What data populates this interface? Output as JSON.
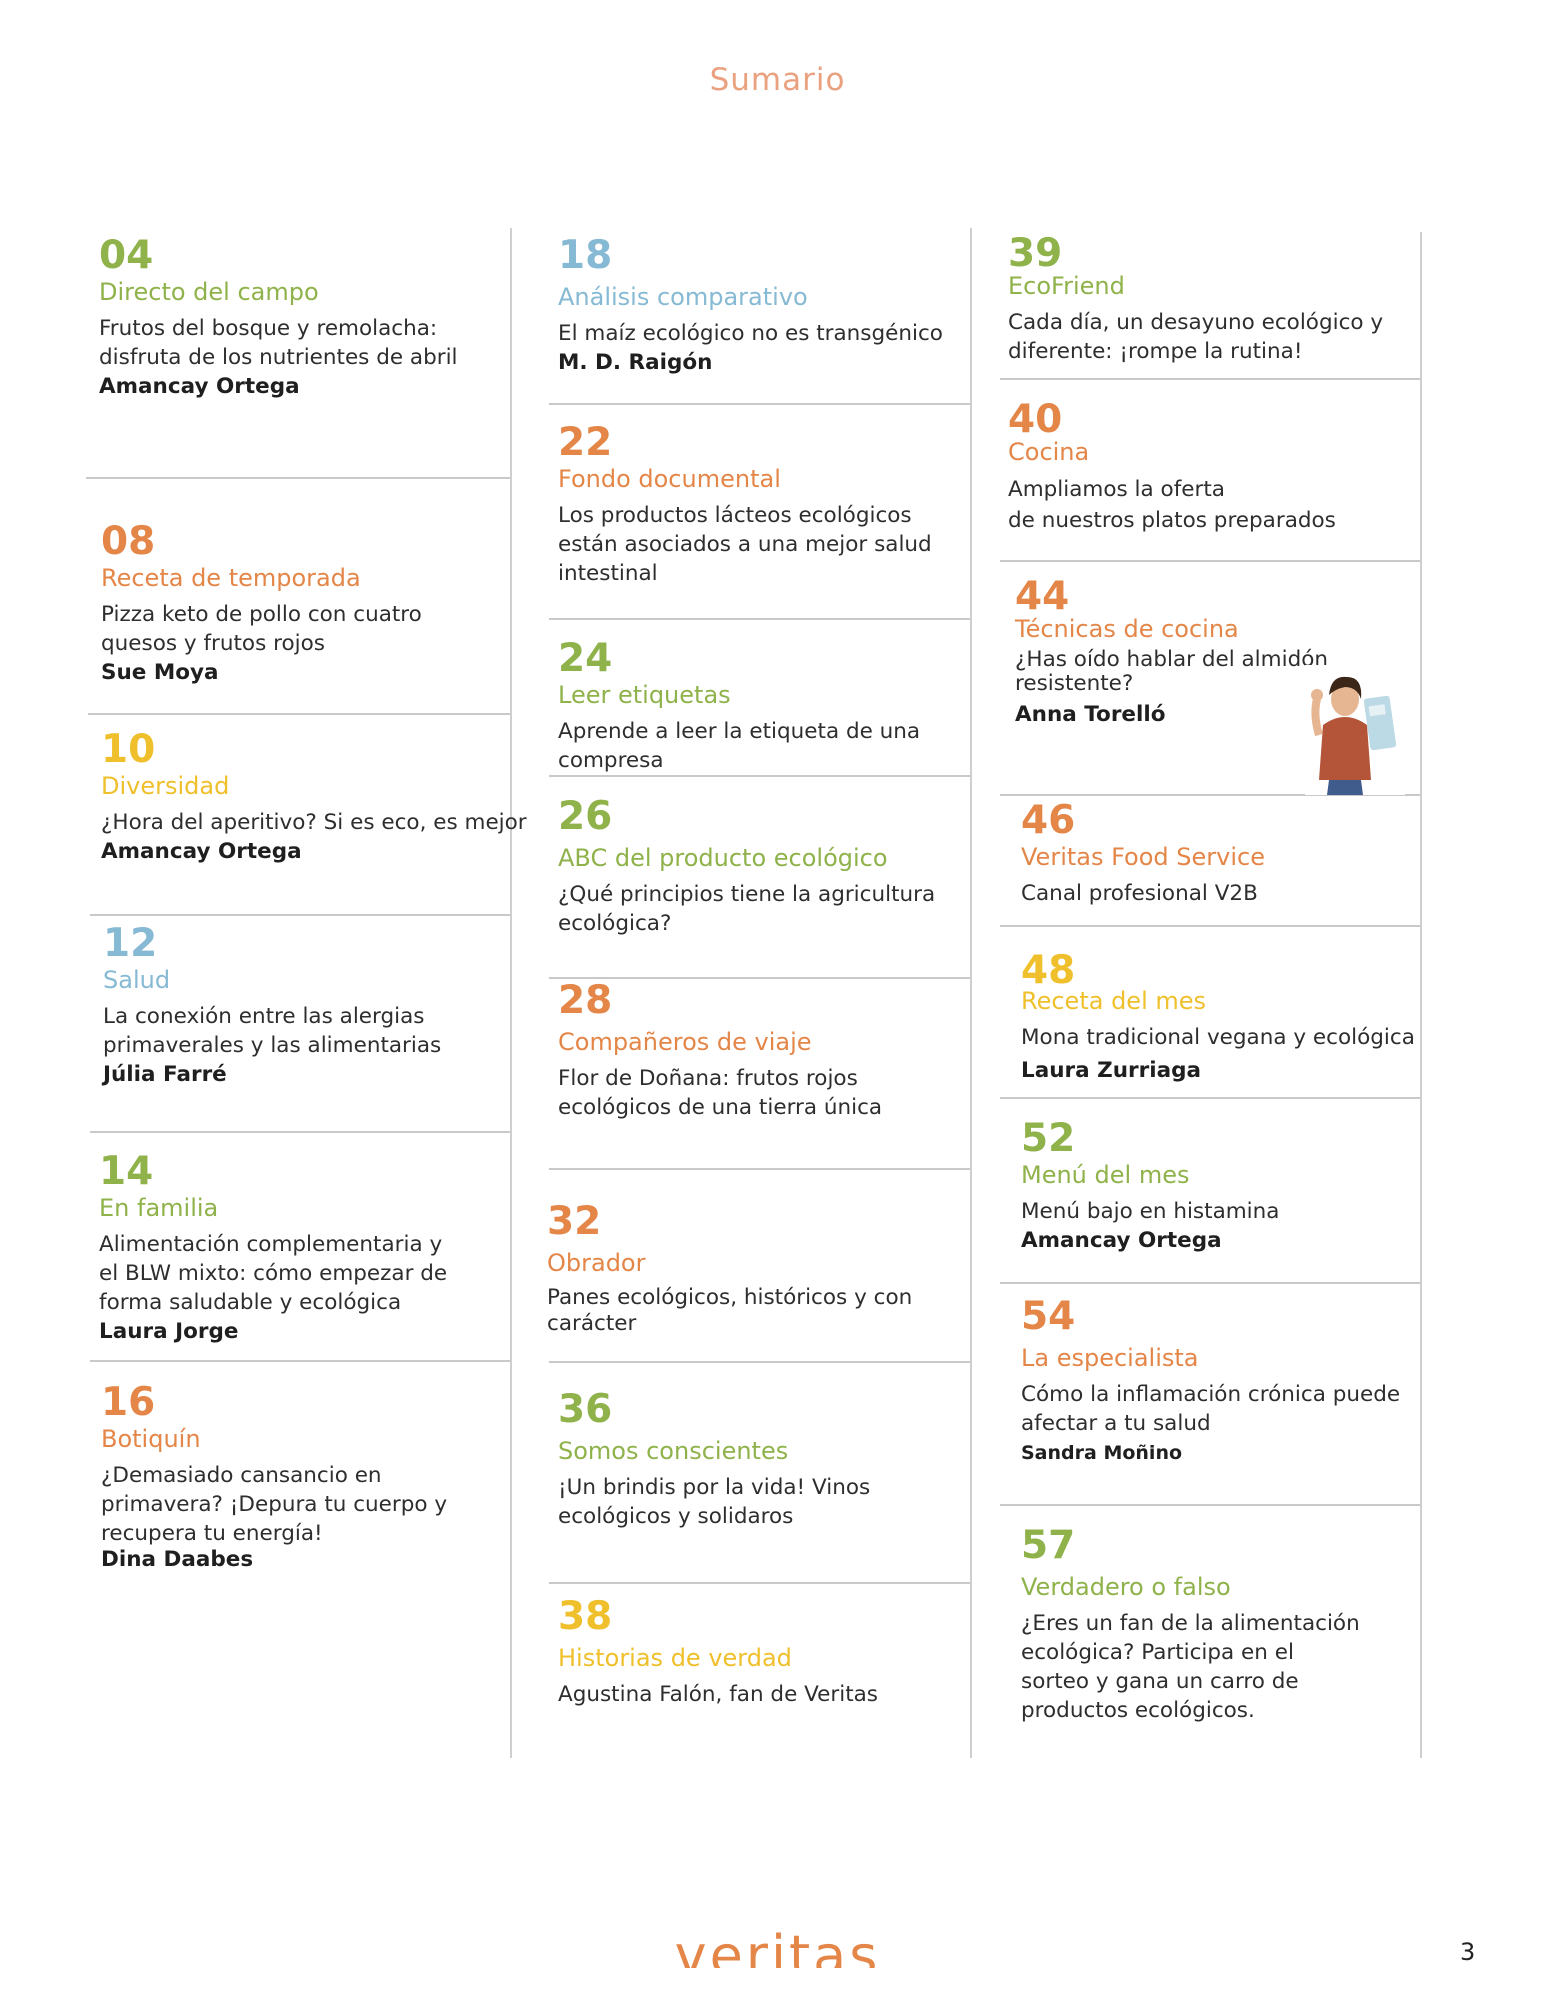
{
  "title": "Sumario",
  "columns": [
    [
      {
        "page": "04",
        "section": "Directo del campo",
        "color": "green",
        "desc": [
          "Frutos del bosque y remolacha:",
          "disfruta de los nutrientes de abril"
        ],
        "author": "Amancay Ortega"
      },
      {
        "page": "08",
        "section": "Receta de temporada",
        "color": "orange",
        "desc": [
          "Pizza keto de pollo con cuatro",
          "quesos y frutos rojos"
        ],
        "author": "Sue Moya"
      },
      {
        "page": "10",
        "section": "Diversidad",
        "color": "yellow",
        "desc": [
          "¿Hora del aperitivo? Si es eco, es mejor"
        ],
        "author": "Amancay Ortega"
      },
      {
        "page": "12",
        "section": "Salud",
        "color": "blue",
        "desc": [
          "La conexión entre las alergias",
          "primaverales y las alimentarias"
        ],
        "author": "Júlia Farré"
      },
      {
        "page": "14",
        "section": "En familia",
        "color": "green",
        "desc": [
          "Alimentación complementaria y",
          "el BLW mixto: cómo empezar de",
          "forma saludable y ecológica"
        ],
        "author": "Laura Jorge"
      },
      {
        "page": "16",
        "section": "Botiquín",
        "color": "orange",
        "desc": [
          "¿Demasiado cansancio en",
          "primavera? ¡Depura tu cuerpo y",
          "recupera tu energía!"
        ],
        "author": "Dina Daabes"
      }
    ],
    [
      {
        "page": "18",
        "section": "Análisis comparativo",
        "color": "blue",
        "desc": [
          "El maíz ecológico no es transgénico"
        ],
        "author": "M. D. Raigón"
      },
      {
        "page": "22",
        "section": "Fondo documental",
        "color": "orange",
        "desc": [
          "Los productos lácteos ecológicos",
          "están asociados a una mejor salud",
          "intestinal"
        ],
        "author": ""
      },
      {
        "page": "24",
        "section": "Leer etiquetas",
        "color": "green",
        "desc": [
          "Aprende a leer la etiqueta de una",
          "compresa"
        ],
        "author": ""
      },
      {
        "page": "26",
        "section": "ABC del producto ecológico",
        "color": "green",
        "desc": [
          "¿Qué principios tiene la agricultura",
          "ecológica?"
        ],
        "author": ""
      },
      {
        "page": "28",
        "section": "Compañeros de viaje",
        "color": "orange",
        "desc": [
          "Flor de Doñana: frutos rojos",
          "ecológicos de una tierra única"
        ],
        "author": ""
      },
      {
        "page": "32",
        "section": "Obrador",
        "color": "orange",
        "desc": [
          "Panes ecológicos, históricos y con",
          "carácter"
        ],
        "author": ""
      },
      {
        "page": "36",
        "section": "Somos conscientes",
        "color": "green",
        "desc": [
          "¡Un brindis por la vida! Vinos",
          "ecológicos y solidaros"
        ],
        "author": ""
      },
      {
        "page": "38",
        "section": "Historias de verdad",
        "color": "yellow",
        "desc": [
          "Agustina Falón, fan de Veritas"
        ],
        "author": ""
      }
    ],
    [
      {
        "page": "39",
        "section": "EcoFriend",
        "color": "green",
        "desc": [
          "Cada día, un desayuno ecológico y",
          "diferente: ¡rompe la rutina!"
        ],
        "author": ""
      },
      {
        "page": "40",
        "section": "Cocina",
        "color": "orange",
        "desc": [
          "Ampliamos la oferta",
          "de nuestros platos preparados"
        ],
        "author": ""
      },
      {
        "page": "44",
        "section": "Técnicas de cocina",
        "color": "orange",
        "desc": [
          "¿Has oído hablar del almidón",
          "resistente?"
        ],
        "author": "Anna Torelló"
      },
      {
        "page": "46",
        "section": "Veritas Food Service",
        "color": "orange",
        "desc": [
          "Canal profesional V2B"
        ],
        "author": ""
      },
      {
        "page": "48",
        "section": "Receta del mes",
        "color": "yellow",
        "desc": [
          "Mona tradicional vegana y ecológica"
        ],
        "author": "Laura Zurriaga"
      },
      {
        "page": "52",
        "section": "Menú del mes",
        "color": "green",
        "desc": [
          "Menú bajo en histamina"
        ],
        "author": "Amancay Ortega"
      },
      {
        "page": "54",
        "section": "La especialista",
        "color": "orange",
        "desc": [
          "Cómo la inflamación crónica puede",
          "afectar a tu salud"
        ],
        "author": "Sandra Moñino"
      },
      {
        "page": "57",
        "section": "Verdadero o falso",
        "color": "green",
        "desc": [
          "¿Eres un fan de la alimentación",
          "ecológica? Participa en el",
          "sorteo y gana un carro de",
          "productos ecológicos."
        ],
        "author": ""
      }
    ]
  ],
  "footer": {
    "logo": "veritas",
    "page_number": "3"
  },
  "colors": {
    "green": "#8fb24a",
    "orange": "#e48648",
    "blue": "#86b9d3",
    "yellow": "#efc02b",
    "title": "#e9a17f"
  }
}
